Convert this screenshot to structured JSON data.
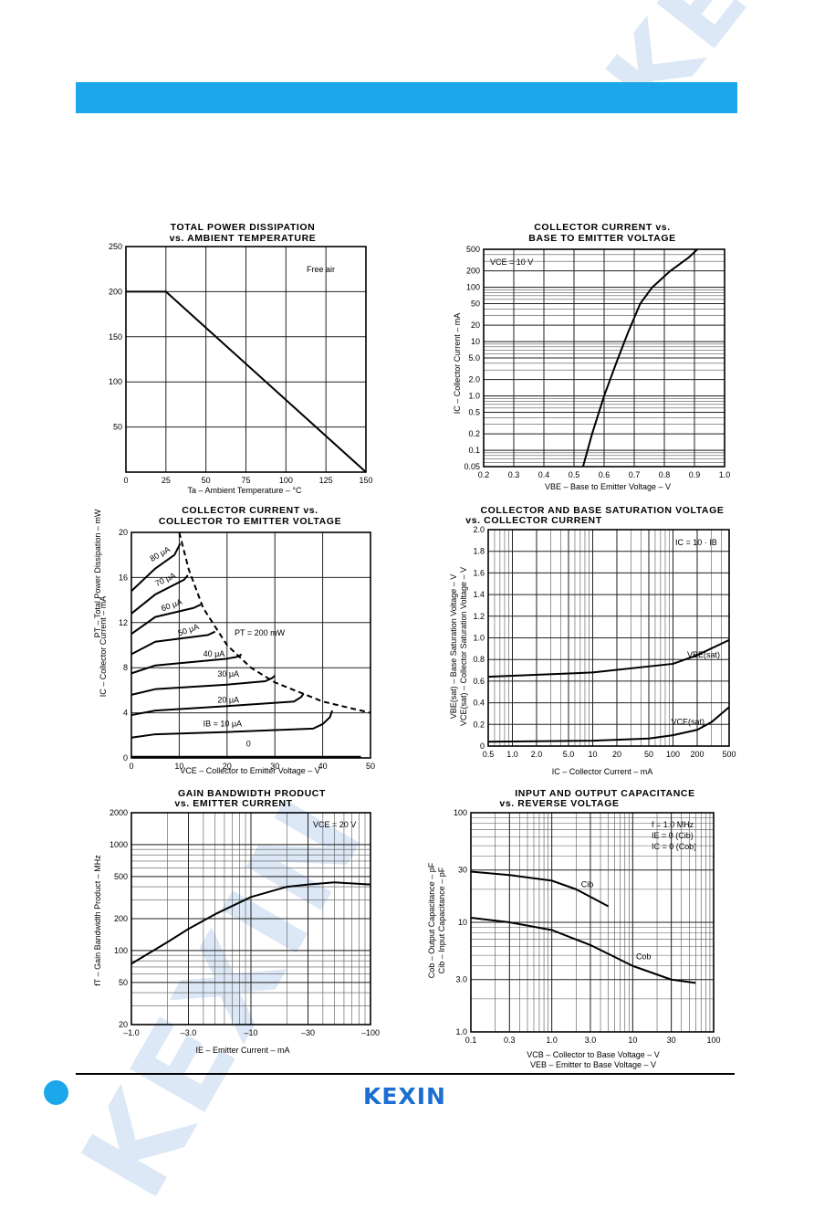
{
  "brand": {
    "logo_text": "KEXIN",
    "watermark_text": "KEXIN",
    "accent": "#1ba7ea"
  },
  "charts": {
    "c1": {
      "title1": "TOTAL POWER DISSIPATION",
      "title2": "vs. AMBIENT TEMPERATURE",
      "ylabel": "PT – Total Power Dissipation – mW",
      "xlabel": "Ta – Ambient Temperature – °C",
      "note": "Free air"
    },
    "c2": {
      "title1": "COLLECTOR CURRENT vs.",
      "title2": "BASE TO EMITTER VOLTAGE",
      "ylabel": "IC – Collector Current – mA",
      "xlabel": "VBE – Base to Emitter Voltage – V",
      "note": "VCE = 10 V"
    },
    "c3": {
      "title1": "COLLECTOR CURRENT vs.",
      "title2": "COLLECTOR TO EMITTER VOLTAGE",
      "ylabel": "IC – Collector Current – mA",
      "xlabel": "VCE – Collector to Emitter Voltage – V",
      "note": "PT = 200 mW"
    },
    "c4": {
      "title1": "COLLECTOR AND BASE SATURATION VOLTAGE",
      "title2": "vs. COLLECTOR CURRENT",
      "ylabel1": "VBE(sat) – Base Saturation Voltage – V",
      "ylabel2": "VCE(sat) – Collector Saturation Voltage – V",
      "xlabel": "IC – Collector Current – mA",
      "note": "IC = 10 · IB"
    },
    "c5": {
      "title1": "GAIN BANDWIDTH PRODUCT",
      "title2": "vs. EMITTER CURRENT",
      "ylabel": "fT – Gain Bandwidth Product – MHz",
      "xlabel": "IE – Emitter Current – mA",
      "note": "VCE = 20 V"
    },
    "c6": {
      "title1": "INPUT AND OUTPUT CAPACITANCE",
      "title2": "vs. REVERSE VOLTAGE",
      "ylabel1": "Cob – Output Capacitance – pF",
      "ylabel2": "Cib – Input Capacitance – pF",
      "xlabel1": "VCB – Collector to Base Voltage – V",
      "xlabel2": "VEB – Emitter to Base Voltage – V",
      "note1": "f = 1.0 MHz",
      "note2": "IE = 0 (Cib)",
      "note3": "IC = 0 (Cob)"
    }
  },
  "chart_data": [
    {
      "type": "line",
      "title": "TOTAL POWER DISSIPATION vs. AMBIENT TEMPERATURE",
      "xlabel": "Ta – Ambient Temperature – °C",
      "ylabel": "PT – Total Power Dissipation – mW",
      "xlim": [
        0,
        150
      ],
      "ylim": [
        0,
        250
      ],
      "xticks": [
        0,
        25,
        50,
        75,
        100,
        125,
        150
      ],
      "yticks": [
        50,
        100,
        150,
        200,
        250
      ],
      "series": [
        {
          "x": [
            0,
            25,
            150
          ],
          "y": [
            200,
            200,
            0
          ]
        }
      ]
    },
    {
      "type": "line",
      "title": "COLLECTOR CURRENT vs. BASE TO EMITTER VOLTAGE",
      "xlabel": "VBE – Base to Emitter Voltage – V",
      "ylabel": "IC – Collector Current – mA",
      "xlim": [
        0.2,
        1.0
      ],
      "ylim": [
        0.05,
        500
      ],
      "yscale": "log",
      "xticks": [
        "0.2",
        "0.3",
        "0.4",
        "0.5",
        "0.6",
        "0.7",
        "0.8",
        "0.9",
        "1.0"
      ],
      "yticks": [
        "0.05",
        "0.1",
        "0.2",
        "0.5",
        "1.0",
        "2.0",
        "5.0",
        "10",
        "20",
        "50",
        "100",
        "200",
        "500"
      ],
      "series": [
        {
          "x": [
            0.53,
            0.56,
            0.6,
            0.64,
            0.68,
            0.72,
            0.76,
            0.82,
            0.88,
            0.91
          ],
          "y": [
            0.05,
            0.2,
            1.0,
            4.0,
            15,
            50,
            100,
            200,
            350,
            500
          ]
        }
      ]
    },
    {
      "type": "line",
      "title": "COLLECTOR CURRENT vs. COLLECTOR TO EMITTER VOLTAGE",
      "xlabel": "VCE – Collector to Emitter Voltage – V",
      "ylabel": "IC – Collector Current – mA",
      "xlim": [
        0,
        50
      ],
      "ylim": [
        0,
        20
      ],
      "xticks": [
        0,
        10,
        20,
        30,
        40,
        50
      ],
      "yticks": [
        0,
        4,
        8,
        12,
        16,
        20
      ],
      "series": [
        {
          "name": "0",
          "x": [
            0,
            48
          ],
          "y": [
            0.1,
            0.1
          ]
        },
        {
          "name": "IB = 10 μA",
          "x": [
            0,
            5,
            20,
            38,
            40,
            41.5,
            42
          ],
          "y": [
            1.8,
            2.1,
            2.3,
            2.6,
            3.0,
            3.6,
            4.2
          ]
        },
        {
          "name": "20 μA",
          "x": [
            0,
            5,
            20,
            34,
            35.5,
            36
          ],
          "y": [
            3.8,
            4.2,
            4.6,
            5.0,
            5.4,
            5.7
          ]
        },
        {
          "name": "30 μA",
          "x": [
            0,
            5,
            20,
            28,
            29.5,
            30
          ],
          "y": [
            5.6,
            6.1,
            6.5,
            6.8,
            7.1,
            7.3
          ]
        },
        {
          "name": "40 μA",
          "x": [
            0,
            5,
            20,
            22.5,
            23
          ],
          "y": [
            7.5,
            8.2,
            8.8,
            9.0,
            9.2
          ]
        },
        {
          "name": "50 μA",
          "x": [
            0,
            5,
            16,
            17.5
          ],
          "y": [
            9.2,
            10.3,
            10.9,
            11.2
          ]
        },
        {
          "name": "60 μA",
          "x": [
            0,
            5,
            13,
            14.5
          ],
          "y": [
            11.0,
            12.5,
            13.3,
            13.6
          ]
        },
        {
          "name": "70 μA",
          "x": [
            0,
            5,
            11,
            11.8
          ],
          "y": [
            12.8,
            14.5,
            15.8,
            16.2
          ]
        },
        {
          "name": "80 μA",
          "x": [
            0,
            5,
            9,
            10.2
          ],
          "y": [
            14.8,
            16.8,
            18.0,
            19.0
          ]
        },
        {
          "name": "PT = 200 mW",
          "x": [
            10,
            12,
            15,
            20,
            25,
            30,
            40,
            50
          ],
          "y": [
            20,
            16.7,
            13.3,
            10,
            8,
            6.7,
            5,
            4
          ]
        }
      ]
    },
    {
      "type": "line",
      "title": "COLLECTOR AND BASE SATURATION VOLTAGE vs. COLLECTOR CURRENT",
      "xlabel": "IC – Collector Current – mA",
      "ylabel": "VBE(sat), VCE(sat) – V",
      "xlim": [
        0.5,
        500
      ],
      "xscale": "log",
      "ylim": [
        0,
        2.0
      ],
      "xticks": [
        "0.5",
        "1.0",
        "2.0",
        "5.0",
        "10",
        "20",
        "50",
        "100",
        "200",
        "500"
      ],
      "yticks": [
        "0",
        "0.2",
        "0.4",
        "0.6",
        "0.8",
        "1.0",
        "1.2",
        "1.4",
        "1.6",
        "1.8",
        "2.0"
      ],
      "series": [
        {
          "name": "VBE(sat)",
          "x": [
            0.5,
            1,
            10,
            100,
            200,
            500
          ],
          "y": [
            0.64,
            0.65,
            0.68,
            0.76,
            0.84,
            0.98
          ]
        },
        {
          "name": "VCE(sat)",
          "x": [
            0.5,
            10,
            50,
            100,
            200,
            300,
            500
          ],
          "y": [
            0.04,
            0.05,
            0.07,
            0.1,
            0.15,
            0.22,
            0.36
          ]
        }
      ]
    },
    {
      "type": "line",
      "title": "GAIN BANDWIDTH PRODUCT vs. EMITTER CURRENT",
      "xlabel": "IE – Emitter Current – mA",
      "ylabel": "fT – Gain Bandwidth Product – MHz",
      "xlim": [
        -1.0,
        -100
      ],
      "xscale": "log",
      "ylim": [
        20,
        2000
      ],
      "yscale": "log",
      "xticks": [
        "–1.0",
        "–3.0",
        "–10",
        "–30",
        "–100"
      ],
      "yticks": [
        "20",
        "50",
        "100",
        "200",
        "500",
        "1000",
        "2000"
      ],
      "series": [
        {
          "x": [
            -1,
            -2,
            -3,
            -5,
            -10,
            -20,
            -30,
            -50,
            -100
          ],
          "y": [
            75,
            120,
            160,
            220,
            320,
            400,
            420,
            440,
            420
          ]
        }
      ]
    },
    {
      "type": "line",
      "title": "INPUT AND OUTPUT CAPACITANCE vs. REVERSE VOLTAGE",
      "xlabel": "VCB / VEB – V",
      "ylabel": "Capacitance – pF",
      "xlim": [
        0.1,
        100
      ],
      "xscale": "log",
      "ylim": [
        1.0,
        100
      ],
      "yscale": "log",
      "xticks": [
        "0.1",
        "0.3",
        "1.0",
        "3.0",
        "10",
        "30",
        "100"
      ],
      "yticks": [
        "1.0",
        "3.0",
        "10",
        "30",
        "100"
      ],
      "series": [
        {
          "name": "Cib",
          "x": [
            0.1,
            0.3,
            1,
            2,
            5
          ],
          "y": [
            29,
            27,
            24,
            20,
            14
          ]
        },
        {
          "name": "Cob",
          "x": [
            0.1,
            0.3,
            1,
            3,
            10,
            30,
            60
          ],
          "y": [
            11,
            10,
            8.5,
            6.2,
            4.0,
            3.0,
            2.8
          ]
        }
      ]
    }
  ]
}
